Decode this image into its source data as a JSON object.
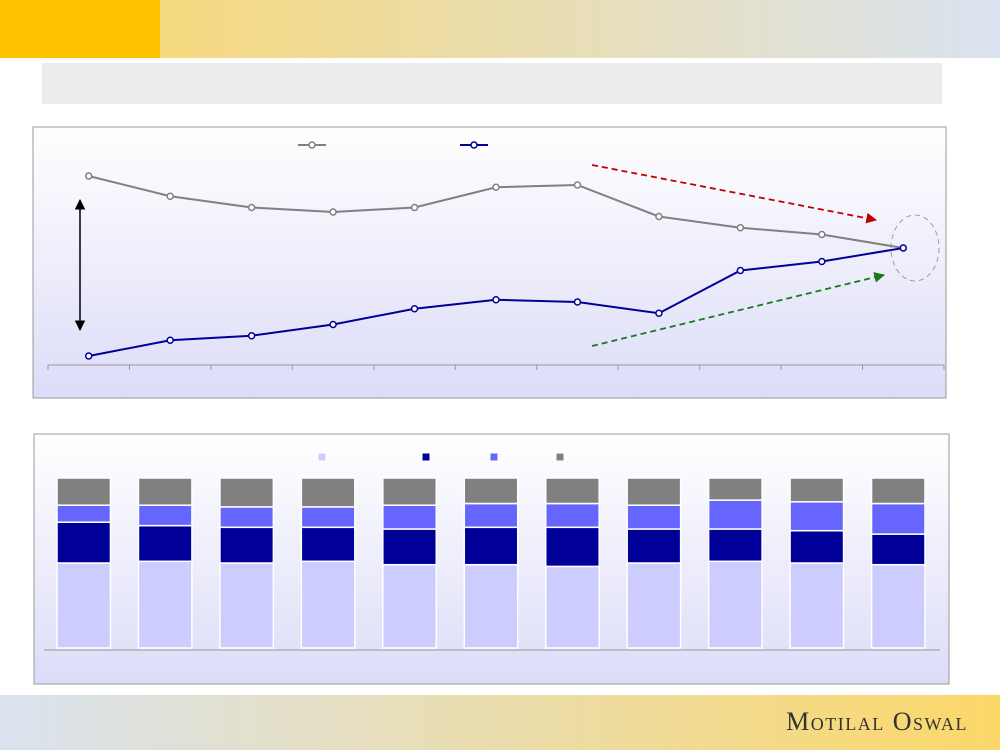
{
  "footer": {
    "logo": "Motilal Oswal"
  },
  "chart_data": [
    {
      "type": "line",
      "categories": [
        null,
        null,
        null,
        null,
        null,
        null,
        null,
        null,
        null,
        null,
        null
      ],
      "ylim": [
        0,
        100
      ],
      "series": [
        {
          "color": "#808080",
          "values": [
            84,
            75,
            70,
            68,
            70,
            79,
            80,
            66,
            61,
            58,
            52
          ]
        },
        {
          "color": "#000099",
          "values": [
            4,
            11,
            13,
            18,
            25,
            29,
            28,
            23,
            42,
            46,
            52
          ]
        }
      ]
    },
    {
      "type": "stacked_bar",
      "categories": [
        null,
        null,
        null,
        null,
        null,
        null,
        null,
        null,
        null,
        null,
        null
      ],
      "ylim": [
        0,
        100
      ],
      "series": [
        {
          "color": "#ccccff",
          "values": [
            50,
            51,
            50,
            51,
            49,
            49,
            48,
            50,
            51,
            50,
            49
          ]
        },
        {
          "color": "#000099",
          "values": [
            24,
            21,
            21,
            20,
            21,
            22,
            23,
            20,
            19,
            19,
            18
          ]
        },
        {
          "color": "#6666ff",
          "values": [
            10,
            12,
            12,
            12,
            14,
            14,
            14,
            14,
            17,
            17,
            18
          ]
        },
        {
          "color": "#808080",
          "values": [
            16,
            16,
            17,
            17,
            16,
            15,
            15,
            16,
            13,
            14,
            15
          ]
        }
      ]
    }
  ]
}
